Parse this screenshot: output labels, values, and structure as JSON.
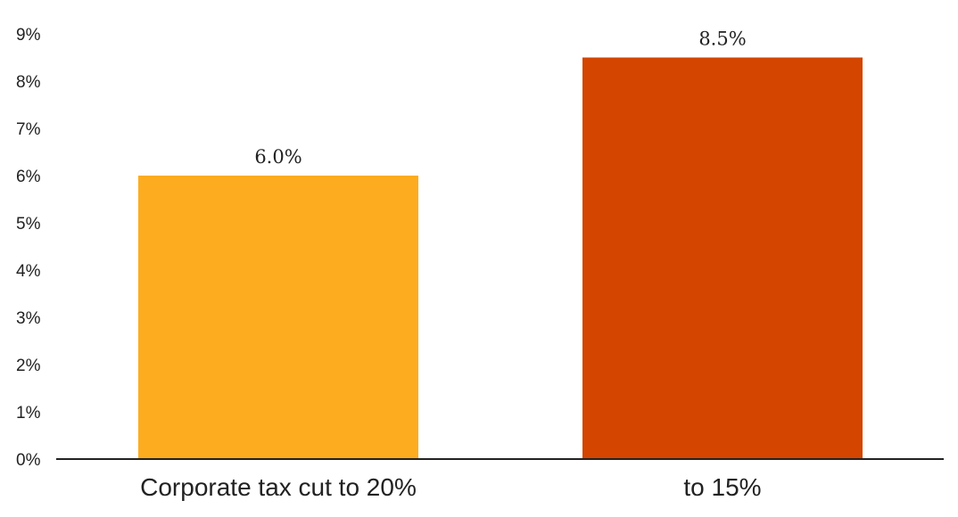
{
  "chart_data": {
    "type": "bar",
    "categories": [
      "Corporate tax cut to 20%",
      "to 15%"
    ],
    "values": [
      6.0,
      8.5
    ],
    "data_labels": [
      "6.0%",
      "8.5%"
    ],
    "colors": [
      "#fdac1f",
      "#d44500"
    ],
    "ylim": [
      0,
      9
    ],
    "yticks": [
      "0%",
      "1%",
      "2%",
      "3%",
      "4%",
      "5%",
      "6%",
      "7%",
      "8%",
      "9%"
    ],
    "title": "",
    "xlabel": "",
    "ylabel": "",
    "grid": false,
    "legend": "none",
    "axis_color": "#222222"
  }
}
